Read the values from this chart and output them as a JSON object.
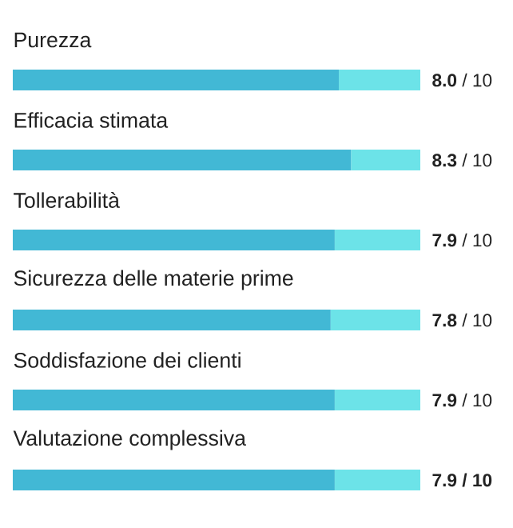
{
  "chart_data": {
    "type": "bar",
    "orientation": "horizontal",
    "stacked": true,
    "categories": [
      "Purezza",
      "Efficacia stimata",
      "Tollerabilità",
      "Sicurezza delle materie prime",
      "Soddisfazione dei clienti",
      "Valutazione complessiva"
    ],
    "xlim": [
      0,
      10
    ],
    "series": [
      {
        "color": "#42b8d5",
        "values": [
          8.0,
          8.3,
          7.9,
          7.8,
          7.9,
          7.9
        ],
        "value_labels": [
          "**8.0** / 10",
          "**8.3** / 10",
          "**7.9** / 10",
          "**7.8** / 10",
          "**7.9** / 10",
          "**7.9 / 10**"
        ]
      },
      {
        "color": "#6ce3e8",
        "values": [
          2.0,
          1.7,
          2.1,
          2.2,
          2.1,
          2.1
        ]
      }
    ]
  }
}
